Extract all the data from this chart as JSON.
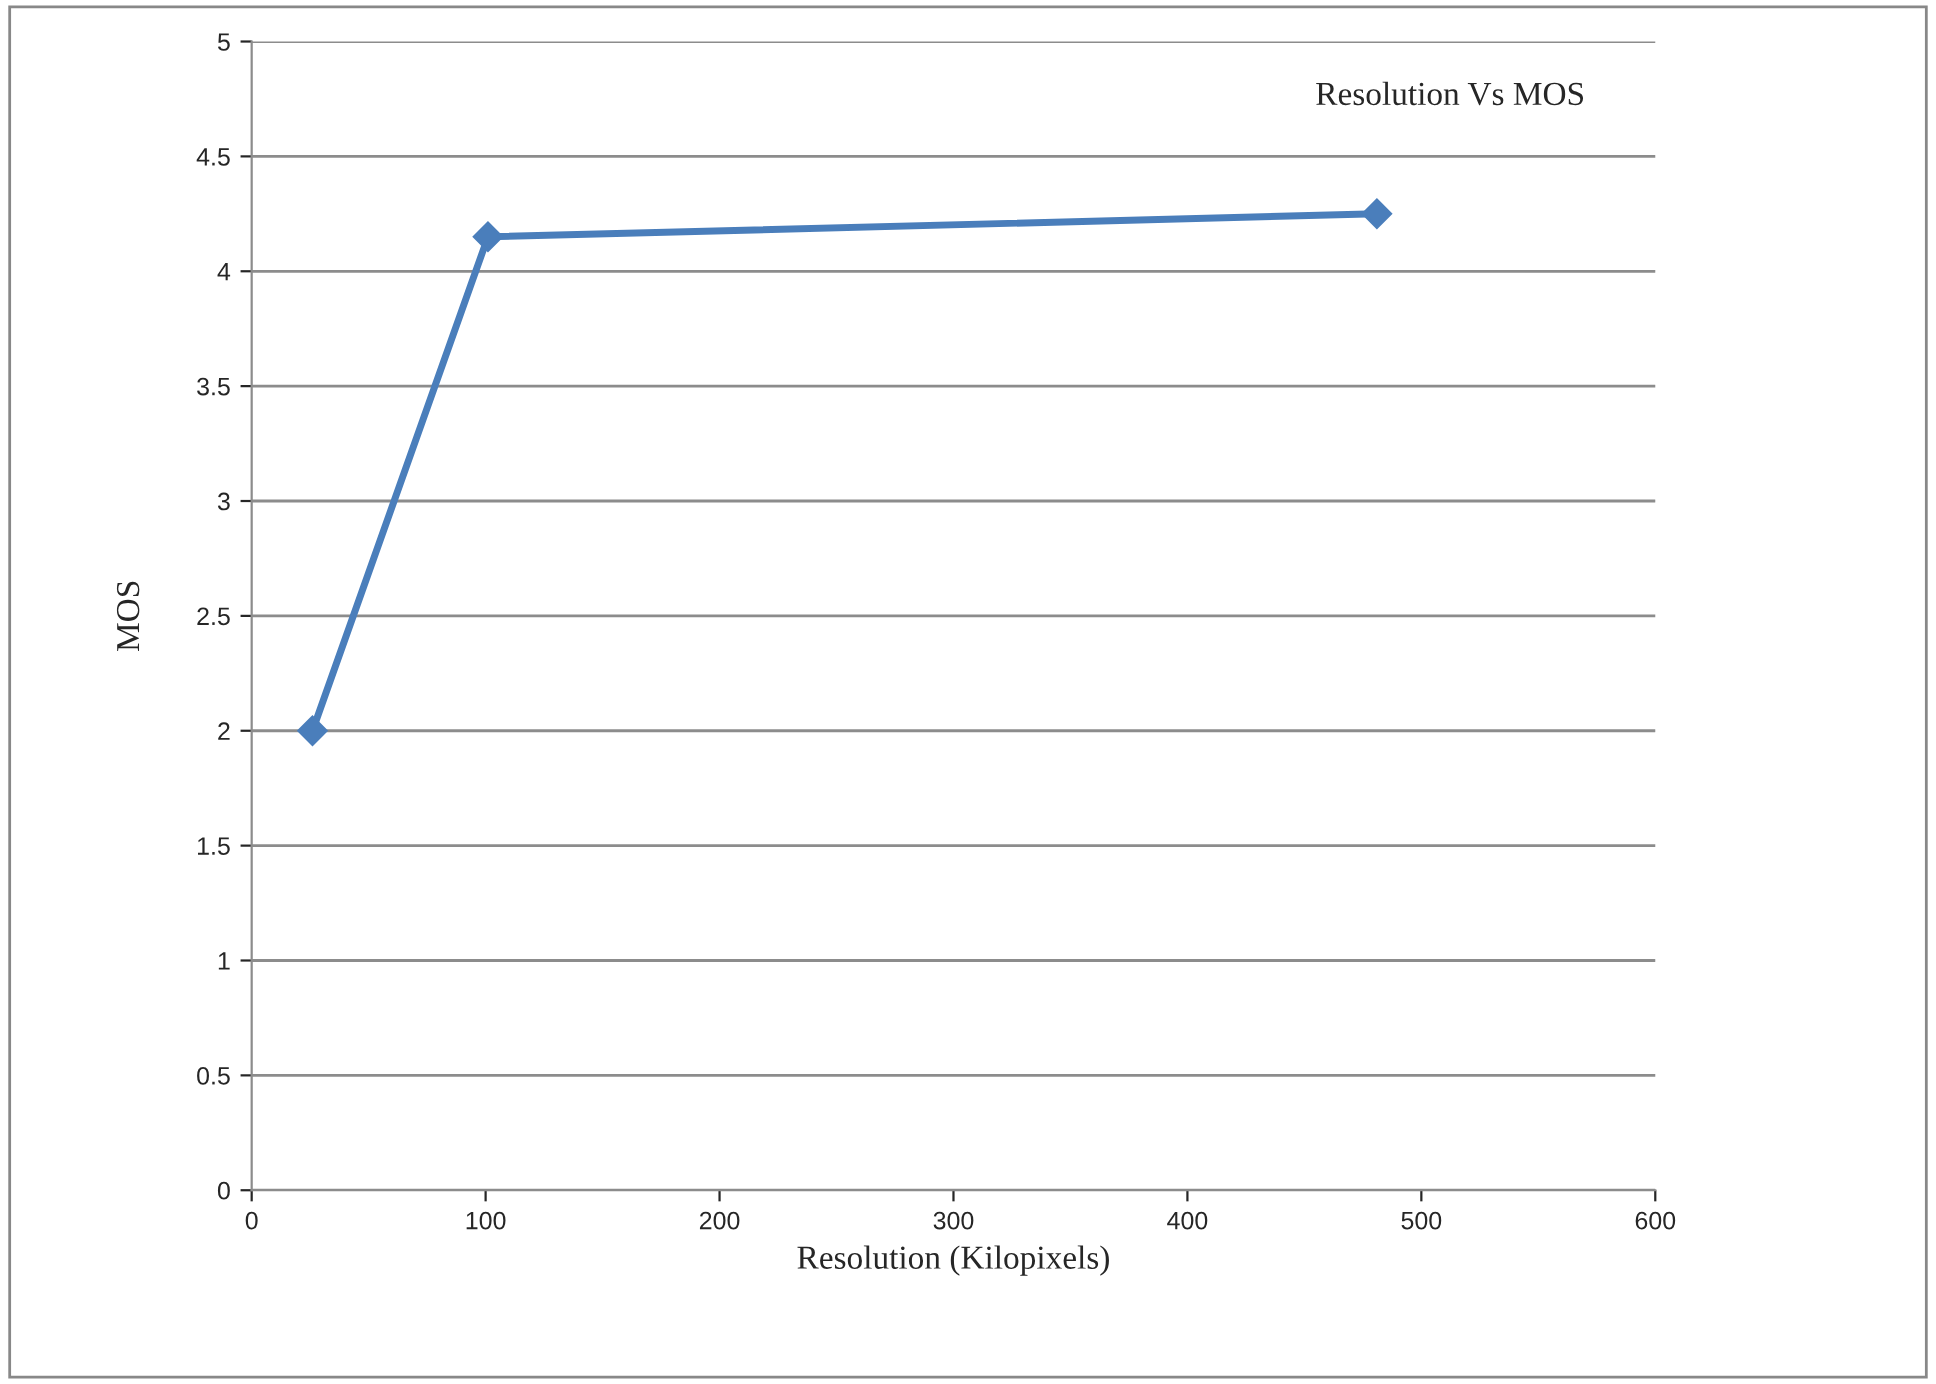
{
  "chart_data": {
    "type": "line",
    "title": "Resolution Vs MOS",
    "xlabel": "Resolution (Kilopixels)",
    "ylabel": "MOS",
    "x": [
      26,
      101,
      481
    ],
    "series": [
      {
        "color": "#4a7ebb",
        "values": [
          2,
          4.15,
          4.25
        ]
      }
    ],
    "xlim": [
      0,
      600
    ],
    "xticks": [
      0,
      100,
      200,
      300,
      400,
      500,
      600
    ],
    "ylim": [
      0,
      5
    ],
    "yticks": [
      0,
      0.5,
      1,
      1.5,
      2,
      2.5,
      3,
      3.5,
      4,
      4.5,
      5
    ],
    "grid": "y",
    "marker": "diamond",
    "line_style": "solid",
    "legend": false
  }
}
